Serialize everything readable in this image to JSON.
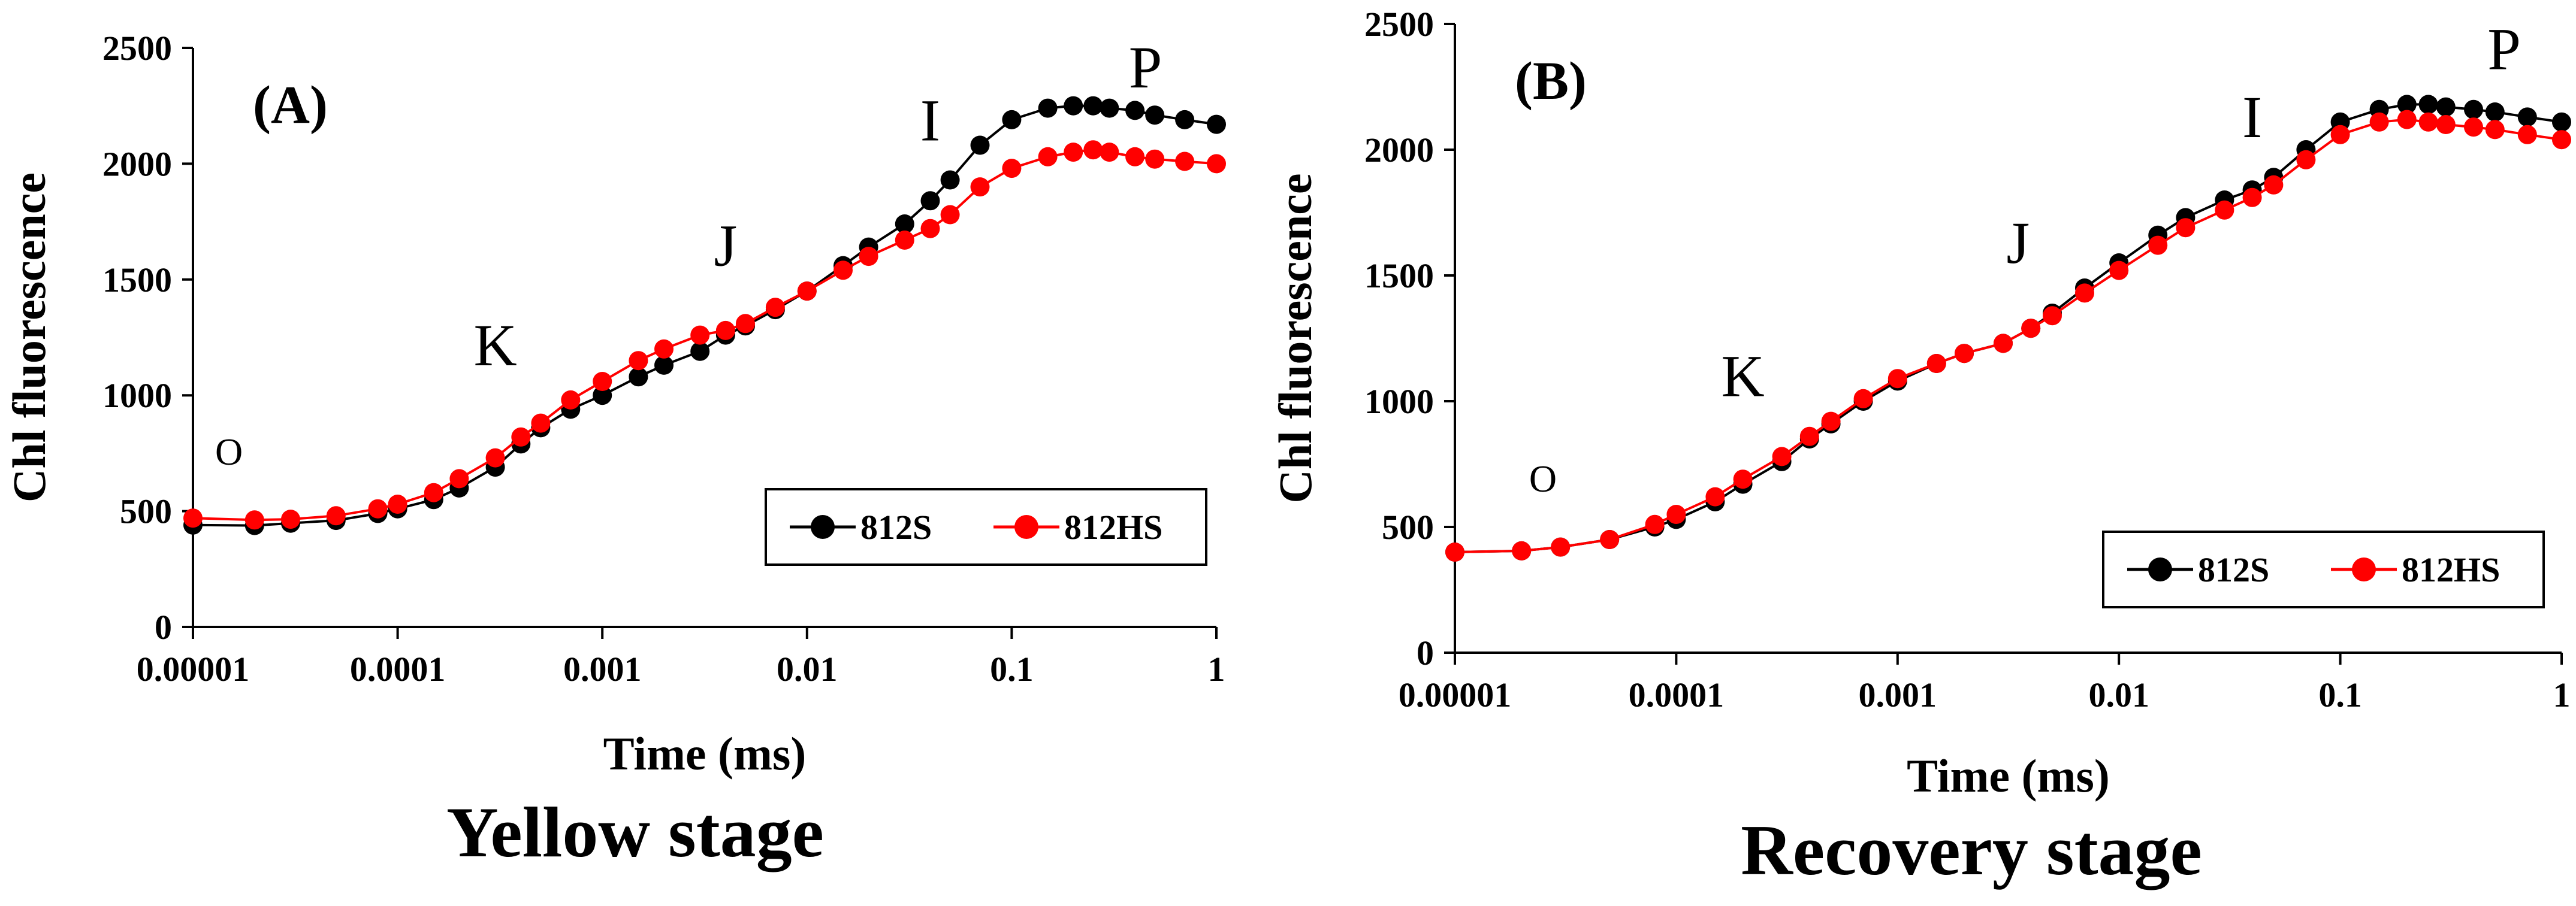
{
  "chart_data": [
    {
      "type": "scatter",
      "panel_label": "(A)",
      "caption": "Yellow stage",
      "xlabel": "Time (ms)",
      "ylabel": "Chl fluorescence",
      "xscale": "log",
      "xlim": [
        1e-05,
        1
      ],
      "ylim": [
        0,
        2500
      ],
      "x_ticks": [
        "0.00001",
        "0.0001",
        "0.001",
        "0.01",
        "0.1",
        "1"
      ],
      "y_ticks": [
        "0",
        "500",
        "1000",
        "1500",
        "2000",
        "2500"
      ],
      "legend_position": "lower-right",
      "annotations": [
        {
          "text": "O",
          "x": 1.5e-05,
          "y": 700
        },
        {
          "text": "K",
          "x": 0.0003,
          "y": 1130
        },
        {
          "text": "J",
          "x": 0.004,
          "y": 1560
        },
        {
          "text": "I",
          "x": 0.04,
          "y": 2100
        },
        {
          "text": "P",
          "x": 0.45,
          "y": 2330
        }
      ],
      "series": [
        {
          "name": "812S",
          "color": "#000000",
          "points": [
            [
              1e-05,
              440
            ],
            [
              2e-05,
              438
            ],
            [
              3e-05,
              448
            ],
            [
              5e-05,
              460
            ],
            [
              8e-05,
              490
            ],
            [
              0.0001,
              510
            ],
            [
              0.00015,
              550
            ],
            [
              0.0002,
              600
            ],
            [
              0.0003,
              690
            ],
            [
              0.0004,
              790
            ],
            [
              0.0005,
              860
            ],
            [
              0.0007,
              940
            ],
            [
              0.001,
              1000
            ],
            [
              0.0015,
              1080
            ],
            [
              0.002,
              1130
            ],
            [
              0.003,
              1190
            ],
            [
              0.004,
              1260
            ],
            [
              0.005,
              1300
            ],
            [
              0.007,
              1370
            ],
            [
              0.01,
              1450
            ],
            [
              0.015,
              1560
            ],
            [
              0.02,
              1640
            ],
            [
              0.03,
              1740
            ],
            [
              0.04,
              1840
            ],
            [
              0.05,
              1930
            ],
            [
              0.07,
              2080
            ],
            [
              0.1,
              2190
            ],
            [
              0.15,
              2240
            ],
            [
              0.2,
              2250
            ],
            [
              0.25,
              2250
            ],
            [
              0.3,
              2240
            ],
            [
              0.4,
              2230
            ],
            [
              0.5,
              2210
            ],
            [
              0.7,
              2190
            ],
            [
              1,
              2170
            ]
          ]
        },
        {
          "name": "812HS",
          "color": "#ff0000",
          "points": [
            [
              1e-05,
              470
            ],
            [
              2e-05,
              462
            ],
            [
              3e-05,
              465
            ],
            [
              5e-05,
              480
            ],
            [
              8e-05,
              510
            ],
            [
              0.0001,
              530
            ],
            [
              0.00015,
              580
            ],
            [
              0.0002,
              640
            ],
            [
              0.0003,
              730
            ],
            [
              0.0004,
              820
            ],
            [
              0.0005,
              880
            ],
            [
              0.0007,
              980
            ],
            [
              0.001,
              1060
            ],
            [
              0.0015,
              1150
            ],
            [
              0.002,
              1200
            ],
            [
              0.003,
              1260
            ],
            [
              0.004,
              1280
            ],
            [
              0.005,
              1310
            ],
            [
              0.007,
              1380
            ],
            [
              0.01,
              1450
            ],
            [
              0.015,
              1540
            ],
            [
              0.02,
              1600
            ],
            [
              0.03,
              1670
            ],
            [
              0.04,
              1720
            ],
            [
              0.05,
              1780
            ],
            [
              0.07,
              1900
            ],
            [
              0.1,
              1980
            ],
            [
              0.15,
              2030
            ],
            [
              0.2,
              2050
            ],
            [
              0.25,
              2060
            ],
            [
              0.3,
              2050
            ],
            [
              0.4,
              2030
            ],
            [
              0.5,
              2020
            ],
            [
              0.7,
              2010
            ],
            [
              1,
              2000
            ]
          ]
        }
      ]
    },
    {
      "type": "scatter",
      "panel_label": "(B)",
      "caption": "Recovery stage",
      "xlabel": "Time (ms)",
      "ylabel": "Chl fluorescence",
      "xscale": "log",
      "xlim": [
        1e-05,
        1
      ],
      "ylim": [
        0,
        2500
      ],
      "x_ticks": [
        "0.00001",
        "0.0001",
        "0.001",
        "0.01",
        "0.1",
        "1"
      ],
      "y_ticks": [
        "0",
        "500",
        "1000",
        "1500",
        "2000",
        "2500"
      ],
      "legend_position": "lower-right",
      "annotations": [
        {
          "text": "O",
          "x": 2.5e-05,
          "y": 640
        },
        {
          "text": "K",
          "x": 0.0002,
          "y": 1020
        },
        {
          "text": "J",
          "x": 0.0035,
          "y": 1550
        },
        {
          "text": "I",
          "x": 0.04,
          "y": 2050
        },
        {
          "text": "P",
          "x": 0.55,
          "y": 2320
        }
      ],
      "series": [
        {
          "name": "812S",
          "color": "#000000",
          "points": [
            [
              1e-05,
              400
            ],
            [
              2e-05,
              405
            ],
            [
              3e-05,
              420
            ],
            [
              5e-05,
              450
            ],
            [
              8e-05,
              500
            ],
            [
              0.0001,
              530
            ],
            [
              0.00015,
              600
            ],
            [
              0.0002,
              670
            ],
            [
              0.0003,
              760
            ],
            [
              0.0004,
              850
            ],
            [
              0.0005,
              910
            ],
            [
              0.0007,
              1000
            ],
            [
              0.001,
              1080
            ],
            [
              0.0015,
              1150
            ],
            [
              0.002,
              1190
            ],
            [
              0.003,
              1230
            ],
            [
              0.004,
              1290
            ],
            [
              0.005,
              1350
            ],
            [
              0.007,
              1450
            ],
            [
              0.01,
              1550
            ],
            [
              0.015,
              1660
            ],
            [
              0.02,
              1730
            ],
            [
              0.03,
              1800
            ],
            [
              0.04,
              1840
            ],
            [
              0.05,
              1890
            ],
            [
              0.07,
              2000
            ],
            [
              0.1,
              2110
            ],
            [
              0.15,
              2160
            ],
            [
              0.2,
              2180
            ],
            [
              0.25,
              2180
            ],
            [
              0.3,
              2170
            ],
            [
              0.4,
              2160
            ],
            [
              0.5,
              2150
            ],
            [
              0.7,
              2130
            ],
            [
              1,
              2110
            ]
          ]
        },
        {
          "name": "812HS",
          "color": "#ff0000",
          "points": [
            [
              1e-05,
              400
            ],
            [
              2e-05,
              405
            ],
            [
              3e-05,
              420
            ],
            [
              5e-05,
              450
            ],
            [
              8e-05,
              510
            ],
            [
              0.0001,
              550
            ],
            [
              0.00015,
              620
            ],
            [
              0.0002,
              690
            ],
            [
              0.0003,
              780
            ],
            [
              0.0004,
              860
            ],
            [
              0.0005,
              920
            ],
            [
              0.0007,
              1010
            ],
            [
              0.001,
              1090
            ],
            [
              0.0015,
              1150
            ],
            [
              0.002,
              1190
            ],
            [
              0.003,
              1230
            ],
            [
              0.004,
              1290
            ],
            [
              0.005,
              1340
            ],
            [
              0.007,
              1430
            ],
            [
              0.01,
              1520
            ],
            [
              0.015,
              1620
            ],
            [
              0.02,
              1690
            ],
            [
              0.03,
              1760
            ],
            [
              0.04,
              1810
            ],
            [
              0.05,
              1860
            ],
            [
              0.07,
              1960
            ],
            [
              0.1,
              2060
            ],
            [
              0.15,
              2110
            ],
            [
              0.2,
              2120
            ],
            [
              0.25,
              2110
            ],
            [
              0.3,
              2100
            ],
            [
              0.4,
              2090
            ],
            [
              0.5,
              2080
            ],
            [
              0.7,
              2060
            ],
            [
              1,
              2040
            ]
          ]
        }
      ]
    }
  ]
}
